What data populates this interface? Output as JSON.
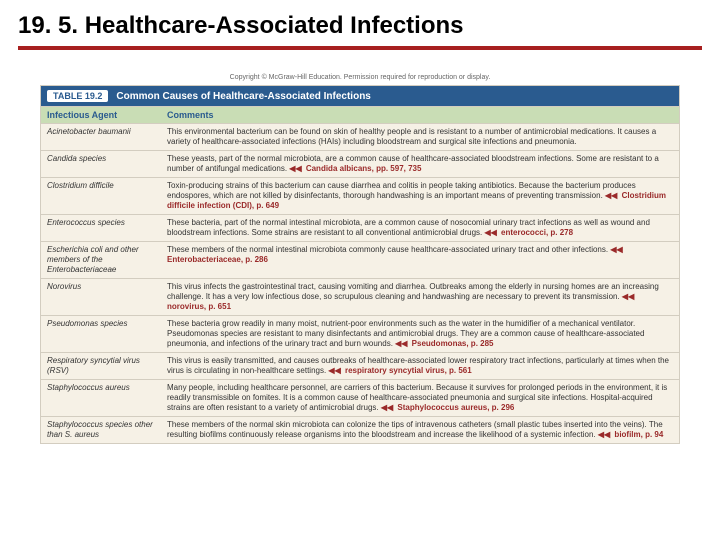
{
  "title": "19. 5. Healthcare-Associated Infections",
  "accent_rule_color": "#a71f1f",
  "copyright": "Copyright © McGraw-Hill Education. Permission required for reproduction or display.",
  "table": {
    "number": "TABLE 19.2",
    "title": "Common Causes of Healthcare-Associated Infections",
    "header_bg": "#2a5b8f",
    "subheader_bg": "#c9ddb5",
    "body_bg": "#f6f1e6",
    "columns": {
      "agent": "Infectious Agent",
      "comments": "Comments"
    },
    "rows": [
      {
        "agent": "Acinetobacter baumanii",
        "comments": "This environmental bacterium can be found on skin of healthy people and is resistant to a number of antimicrobial medications. It causes a variety of healthcare-associated infections (HAIs) including bloodstream and surgical site infections and pneumonia.",
        "ref": ""
      },
      {
        "agent": "Candida species",
        "comments": "These yeasts, part of the normal microbiota, are a common cause of healthcare-associated bloodstream infections. Some are resistant to a number of antifungal medications.",
        "ref": "Candida albicans, pp. 597, 735"
      },
      {
        "agent": "Clostridium difficile",
        "comments": "Toxin-producing strains of this bacterium can cause diarrhea and colitis in people taking antibiotics. Because the bacterium produces endospores, which are not killed by disinfectants, thorough handwashing is an important means of preventing transmission.",
        "ref": "Clostridium difficile infection (CDI), p. 649"
      },
      {
        "agent": "Enterococcus species",
        "comments": "These bacteria, part of the normal intestinal microbiota, are a common cause of nosocomial urinary tract infections as well as wound and bloodstream infections. Some strains are resistant to all conventional antimicrobial drugs.",
        "ref": "enterococci, p. 278"
      },
      {
        "agent": "Escherichia coli and other members of the Enterobacteriaceae",
        "comments": "These members of the normal intestinal microbiota commonly cause healthcare-associated urinary tract and other infections.",
        "ref": "Enterobacteriaceae, p. 286"
      },
      {
        "agent": "Norovirus",
        "comments": "This virus infects the gastrointestinal tract, causing vomiting and diarrhea. Outbreaks among the elderly in nursing homes are an increasing challenge. It has a very low infectious dose, so scrupulous cleaning and handwashing are necessary to prevent its transmission.",
        "ref": "norovirus, p. 651"
      },
      {
        "agent": "Pseudomonas species",
        "comments": "These bacteria grow readily in many moist, nutrient-poor environments such as the water in the humidifier of a mechanical ventilator. Pseudomonas species are resistant to many disinfectants and antimicrobial drugs. They are a common cause of healthcare-associated pneumonia, and infections of the urinary tract and burn wounds.",
        "ref": "Pseudomonas, p. 285"
      },
      {
        "agent": "Respiratory syncytial virus (RSV)",
        "comments": "This virus is easily transmitted, and causes outbreaks of healthcare-associated lower respiratory tract infections, particularly at times when the virus is circulating in non-healthcare settings.",
        "ref": "respiratory syncytial virus, p. 561"
      },
      {
        "agent": "Staphylococcus aureus",
        "comments": "Many people, including healthcare personnel, are carriers of this bacterium. Because it survives for prolonged periods in the environment, it is readily transmissible on fomites. It is a common cause of healthcare-associated pneumonia and surgical site infections. Hospital-acquired strains are often resistant to a variety of antimicrobial drugs.",
        "ref": "Staphylococcus aureus, p. 296"
      },
      {
        "agent": "Staphylococcus species other than S. aureus",
        "comments": "These members of the normal skin microbiota can colonize the tips of intravenous catheters (small plastic tubes inserted into the veins). The resulting biofilms continuously release organisms into the bloodstream and increase the likelihood of a systemic infection.",
        "ref": "biofilm, p. 94"
      }
    ]
  }
}
